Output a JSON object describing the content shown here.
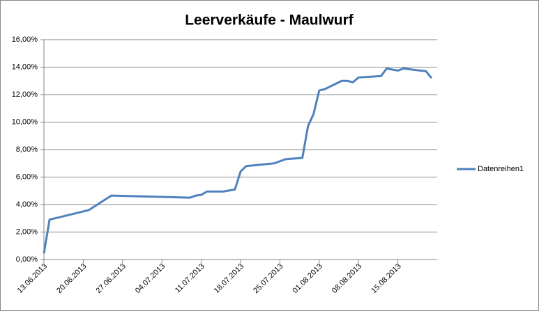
{
  "chart_data": {
    "type": "line",
    "title": "Leerverkäufe - Maulwurf",
    "x": [
      "13.06.2013",
      "14.06.2013",
      "21.06.2013",
      "25.06.2013",
      "09.07.2013",
      "10.07.2013",
      "11.07.2013",
      "12.07.2013",
      "15.07.2013",
      "17.07.2013",
      "18.07.2013",
      "19.07.2013",
      "24.07.2013",
      "26.07.2013",
      "29.07.2013",
      "30.07.2013",
      "31.07.2013",
      "01.08.2013",
      "02.08.2013",
      "05.08.2013",
      "06.08.2013",
      "07.08.2013",
      "08.08.2013",
      "12.08.2013",
      "13.08.2013",
      "15.08.2013",
      "16.08.2013",
      "20.08.2013",
      "21.08.2013"
    ],
    "series": [
      {
        "name": "Datenreihen1",
        "color": "#4f81bd",
        "values": [
          0.45,
          2.9,
          3.6,
          4.65,
          4.5,
          4.65,
          4.7,
          4.95,
          4.95,
          5.1,
          6.4,
          6.8,
          7.0,
          7.3,
          7.4,
          9.7,
          10.6,
          12.3,
          12.4,
          13.0,
          13.0,
          12.9,
          13.25,
          13.35,
          13.9,
          13.75,
          13.9,
          13.7,
          13.2
        ]
      }
    ],
    "xlim": [
      "13.06.2013",
      "22.08.2013"
    ],
    "xticks": [
      "13.06.2013",
      "20.06.2013",
      "27.06.2013",
      "04.07.2013",
      "11.07.2013",
      "18.07.2013",
      "25.07.2013",
      "01.08.2013",
      "08.08.2013",
      "15.08.2013"
    ],
    "ylim": [
      0,
      16
    ],
    "yticks": [
      {
        "value": 0,
        "label": "0,00%"
      },
      {
        "value": 2,
        "label": "2,00%"
      },
      {
        "value": 4,
        "label": "4,00%"
      },
      {
        "value": 6,
        "label": "6,00%"
      },
      {
        "value": 8,
        "label": "8,00%"
      },
      {
        "value": 10,
        "label": "10,00%"
      },
      {
        "value": 12,
        "label": "12,00%"
      },
      {
        "value": 14,
        "label": "14,00%"
      },
      {
        "value": 16,
        "label": "16,00%"
      }
    ],
    "grid": true,
    "legend": "right"
  }
}
